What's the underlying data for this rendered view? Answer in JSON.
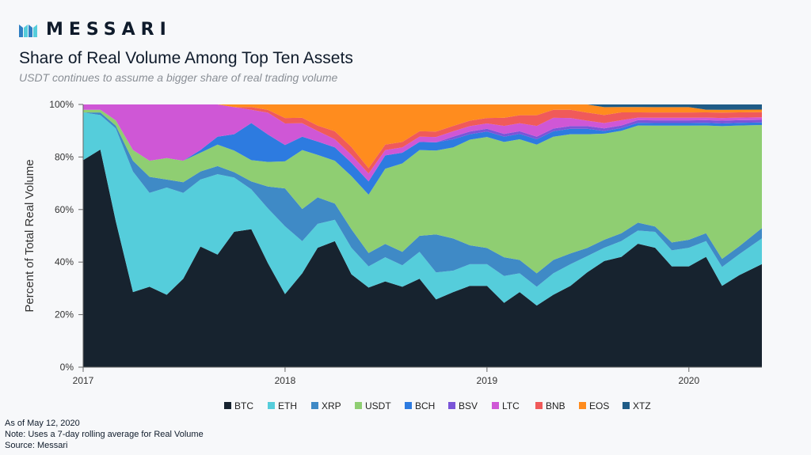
{
  "brand": {
    "wordmark": "MESSARI"
  },
  "header": {
    "title": "Share of Real Volume Among Top Ten Assets",
    "subtitle": "USDT continues to assume a bigger share of real trading volume"
  },
  "footer": {
    "as_of": "As of May 12, 2020",
    "note": "Note: Uses a 7-day rolling average for Real Volume",
    "source": "Source: Messari"
  },
  "colors": {
    "BTC": "#17232f",
    "ETH": "#55cddb",
    "XRP": "#3f8ac6",
    "USDT": "#8fce72",
    "BCH": "#2d7be0",
    "BSV": "#7a55d8",
    "LTC": "#cf57d6",
    "BNB": "#f05a5a",
    "EOS": "#ff8c1e",
    "XTZ": "#1f5c87"
  },
  "chart_data": {
    "type": "area",
    "stacked": true,
    "ylabel": "Percent of Total Real Volume",
    "xlabel": "",
    "ylim": [
      0,
      100
    ],
    "y_ticks": [
      "0%",
      "20%",
      "40%",
      "60%",
      "80%",
      "100%"
    ],
    "x_ticks": [
      "2017",
      "2018",
      "2019",
      "2020"
    ],
    "x_range": [
      "2017-01-01",
      "2020-05-12"
    ],
    "legend_position": "bottom",
    "x": [
      "2017-01",
      "2017-02",
      "2017-03",
      "2017-04",
      "2017-05",
      "2017-06",
      "2017-07",
      "2017-08",
      "2017-09",
      "2017-10",
      "2017-11",
      "2017-12",
      "2018-01",
      "2018-02",
      "2018-03",
      "2018-04",
      "2018-05",
      "2018-06",
      "2018-07",
      "2018-08",
      "2018-09",
      "2018-10",
      "2018-11",
      "2018-12",
      "2019-01",
      "2019-02",
      "2019-03",
      "2019-04",
      "2019-05",
      "2019-06",
      "2019-07",
      "2019-08",
      "2019-09",
      "2019-10",
      "2019-11",
      "2019-12",
      "2020-01",
      "2020-02",
      "2020-03",
      "2020-04",
      "2020-05"
    ],
    "series": [
      {
        "name": "BTC",
        "values": [
          78,
          82,
          55,
          28,
          30,
          27,
          33,
          45,
          42,
          50,
          52,
          38,
          27,
          35,
          45,
          47,
          35,
          30,
          32,
          30,
          33,
          25,
          28,
          30,
          30,
          24,
          28,
          23,
          27,
          30,
          35,
          40,
          42,
          47,
          45,
          38,
          38,
          42,
          30,
          35,
          40
        ]
      },
      {
        "name": "ETH",
        "values": [
          18,
          13,
          35,
          45,
          35,
          40,
          32,
          25,
          30,
          20,
          15,
          20,
          25,
          12,
          9,
          8,
          10,
          8,
          9,
          8,
          10,
          10,
          8,
          8,
          8,
          10,
          7,
          7,
          8,
          8,
          6,
          5,
          6,
          5,
          6,
          6,
          7,
          6,
          7,
          8,
          10
        ]
      },
      {
        "name": "XRP",
        "values": [
          0,
          1,
          1,
          4,
          6,
          3,
          4,
          3,
          3,
          2,
          3,
          8,
          14,
          12,
          10,
          6,
          7,
          5,
          5,
          5,
          6,
          14,
          12,
          7,
          6,
          7,
          5,
          5,
          5,
          4,
          3,
          3,
          3,
          3,
          2,
          3,
          3,
          3,
          3,
          3,
          4
        ]
      },
      {
        "name": "USDT",
        "values": [
          1,
          1,
          2,
          4,
          6,
          8,
          8,
          7,
          8,
          8,
          8,
          9,
          10,
          22,
          16,
          16,
          20,
          22,
          28,
          33,
          32,
          31,
          34,
          39,
          41,
          43,
          45,
          48,
          46,
          44,
          42,
          40,
          39,
          37,
          38,
          44,
          43,
          41,
          49,
          46,
          40
        ]
      },
      {
        "name": "BCH",
        "values": [
          0,
          0,
          0,
          0,
          0,
          0,
          0,
          1,
          3,
          6,
          14,
          10,
          6,
          5,
          5,
          5,
          5,
          5,
          5,
          4,
          3,
          3,
          3,
          2,
          2,
          2,
          2,
          2,
          2,
          2,
          2,
          1,
          1,
          1,
          1,
          1,
          1,
          1,
          1,
          1,
          1
        ]
      },
      {
        "name": "BSV",
        "values": [
          0,
          0,
          0,
          0,
          0,
          0,
          0,
          0,
          0,
          0,
          0,
          0,
          0,
          0,
          0,
          0,
          0,
          0,
          0,
          0,
          0,
          0,
          1,
          1,
          1,
          1,
          1,
          1,
          1,
          1,
          1,
          1,
          1,
          1,
          1,
          1,
          1,
          1,
          1,
          1,
          1
        ]
      },
      {
        "name": "LTC",
        "values": [
          2,
          2,
          6,
          17,
          21,
          20,
          21,
          17,
          12,
          10,
          5,
          8,
          8,
          5,
          4,
          3,
          3,
          3,
          2,
          2,
          2,
          2,
          2,
          2,
          2,
          3,
          3,
          4,
          4,
          3,
          2,
          2,
          2,
          1,
          1,
          1,
          1,
          1,
          1,
          1,
          1
        ]
      },
      {
        "name": "BNB",
        "values": [
          0,
          0,
          0,
          0,
          0,
          0,
          0,
          0,
          0,
          0,
          1,
          1,
          2,
          2,
          2,
          3,
          3,
          2,
          2,
          2,
          2,
          2,
          2,
          2,
          2,
          3,
          3,
          4,
          3,
          3,
          3,
          3,
          3,
          2,
          2,
          2,
          2,
          2,
          2,
          2,
          2
        ]
      },
      {
        "name": "EOS",
        "values": [
          0,
          0,
          0,
          0,
          0,
          0,
          0,
          0,
          0,
          1,
          1,
          2,
          5,
          5,
          8,
          10,
          16,
          24,
          15,
          14,
          10,
          10,
          8,
          6,
          5,
          5,
          4,
          4,
          2,
          2,
          3,
          3,
          2,
          2,
          2,
          2,
          2,
          1,
          1,
          1,
          1
        ]
      },
      {
        "name": "XTZ",
        "values": [
          0,
          0,
          0,
          0,
          0,
          0,
          0,
          0,
          0,
          0,
          0,
          0,
          0,
          0,
          0,
          0,
          0,
          0,
          0,
          0,
          0,
          0,
          0,
          0,
          0,
          0,
          0,
          0,
          0,
          0,
          0,
          1,
          1,
          1,
          1,
          1,
          1,
          2,
          2,
          2,
          2
        ]
      }
    ]
  }
}
